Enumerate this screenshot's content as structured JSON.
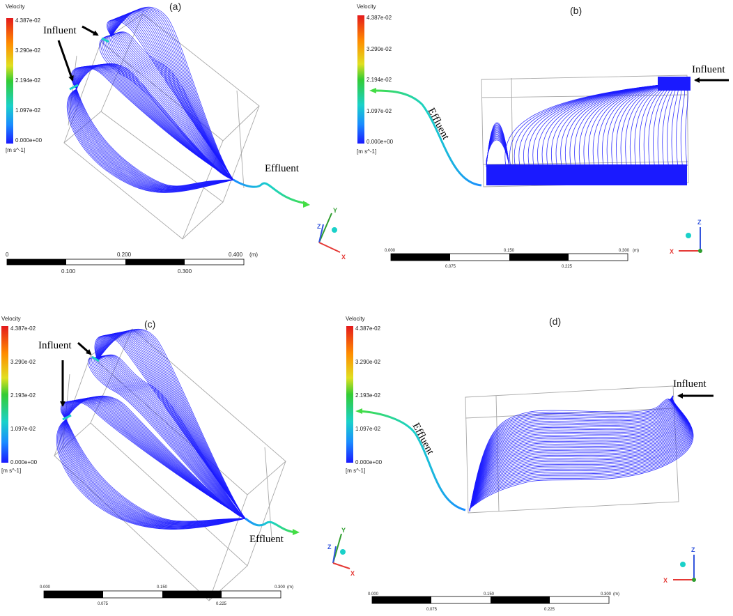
{
  "panels": [
    {
      "label": "(a)",
      "legend": {
        "title": "Velocity",
        "ticks": [
          "4.387e-02",
          "3.290e-02",
          "2.194e-02",
          "1.097e-02",
          "0.000e+00"
        ],
        "unit": "[m s^-1]"
      },
      "influent": "Influent",
      "effluent": "Effluent",
      "scale": {
        "top": [
          "0",
          "0.200",
          "0.400"
        ],
        "unit": "(m)",
        "bottom": [
          "0.100",
          "0.300"
        ]
      },
      "axes": [
        "Y",
        "Z",
        "X"
      ]
    },
    {
      "label": "(b)",
      "legend": {
        "title": "Velocity",
        "ticks": [
          "4.387e-02",
          "3.290e-02",
          "2.194e-02",
          "1.097e-02",
          "0.000e+00"
        ],
        "unit": "[m s^-1]"
      },
      "influent": "Influent",
      "effluent": "Effluent",
      "scale": {
        "top": [
          "0.000",
          "0.150",
          "0.300"
        ],
        "unit": "(m)",
        "bottom": [
          "0.075",
          "0.225"
        ]
      },
      "axes": [
        "Z",
        "X"
      ]
    },
    {
      "label": "(c)",
      "legend": {
        "title": "Velocity",
        "ticks": [
          "4.387e-02",
          "3.290e-02",
          "2.193e-02",
          "1.097e-02",
          "0.000e+00"
        ],
        "unit": "[m s^-1]"
      },
      "influent": "Influent",
      "effluent": "Effluent",
      "scale": {
        "top": [
          "0.000",
          "0.150",
          "0.300"
        ],
        "unit": "(m)",
        "bottom": [
          "0.075",
          "0.225"
        ]
      },
      "axes": [
        "Y",
        "Z",
        "X"
      ]
    },
    {
      "label": "(d)",
      "legend": {
        "title": "Velocity",
        "ticks": [
          "4.387e-02",
          "3.290e-02",
          "2.193e-02",
          "1.097e-02",
          "0.000e+00"
        ],
        "unit": "[m s^-1]"
      },
      "influent": "Influent",
      "effluent": "Effluent",
      "scale": {
        "top": [
          "0.000",
          "0.150",
          "0.300"
        ],
        "unit": "(m)",
        "bottom": [
          "0.075",
          "0.225"
        ]
      },
      "axes": [
        "Z",
        "X"
      ]
    }
  ],
  "colors": {
    "streamline": "#1a1aff",
    "box_edge": "#a8a8a8",
    "axis_x": "#e53935",
    "axis_y": "#2e9d2e",
    "axis_z": "#3355dd",
    "colormap": [
      "#e41a1c",
      "#ff9900",
      "#e5e52e",
      "#33cc33",
      "#1ad1c9",
      "#1a66ff",
      "#1a1aff"
    ]
  }
}
